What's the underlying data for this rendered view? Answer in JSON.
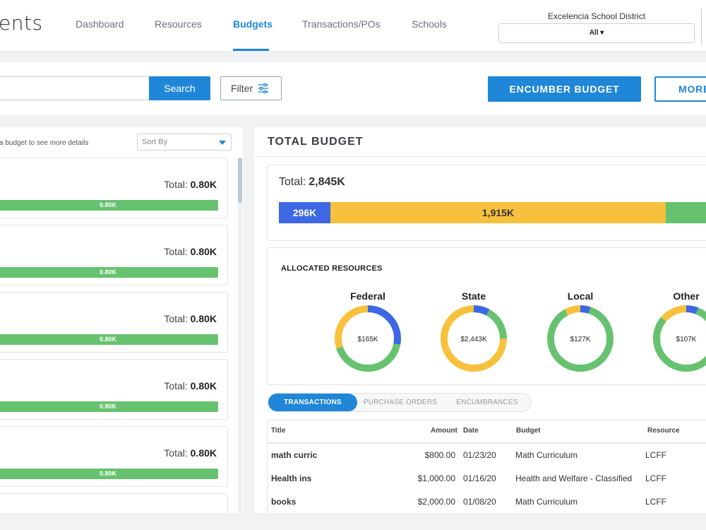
{
  "app": {
    "logo_text": "ents"
  },
  "nav": {
    "items": [
      {
        "label": "Dashboard"
      },
      {
        "label": "Resources"
      },
      {
        "label": "Budgets"
      },
      {
        "label": "Transactions/POs"
      },
      {
        "label": "Schools"
      }
    ],
    "active_item": "Budgets",
    "district_label": "Excelencia School District",
    "district_value": "All ▾"
  },
  "toolbar": {
    "search_value": "",
    "search_label": "Search",
    "filter_label": "Filter",
    "encumber_label": "ENCUMBER BUDGET",
    "more_label": "MORE"
  },
  "left": {
    "hint": "a budget to see more details",
    "sort_placeholder": "Sort By",
    "cards": [
      {
        "total_label": "Total:",
        "total_value": "0.80K",
        "bar_label": "0.80K"
      },
      {
        "total_label": "Total:",
        "total_value": "0.80K",
        "bar_label": "0.80K"
      },
      {
        "total_label": "Total:",
        "total_value": "0.80K",
        "bar_label": "0.80K"
      },
      {
        "total_label": "Total:",
        "total_value": "0.80K",
        "bar_label": "0.80K"
      },
      {
        "total_label": "Total:",
        "total_value": "0.80K",
        "bar_label": "0.80K"
      }
    ]
  },
  "right": {
    "title": "TOTAL BUDGET",
    "total_label": "Total:",
    "total_value": "2,845K",
    "segments": [
      {
        "label": "296K",
        "color": "#3d67e3"
      },
      {
        "label": "1,915K",
        "color": "#f7c13d"
      },
      {
        "label": "",
        "color": "#66c26f"
      }
    ],
    "allocated_title": "ALLOCATED RESOURCES",
    "donuts": [
      {
        "name": "Federal",
        "value": "$165K",
        "fractions": {
          "blue": 0.28,
          "green": 0.42,
          "yellow": 0.3
        }
      },
      {
        "name": "State",
        "value": "$2,443K",
        "fractions": {
          "blue": 0.08,
          "green": 0.17,
          "yellow": 0.75
        }
      },
      {
        "name": "Local",
        "value": "$127K",
        "fractions": {
          "blue": 0.05,
          "green": 0.87,
          "yellow": 0.08
        }
      },
      {
        "name": "Other",
        "value": "$107K",
        "fractions": {
          "blue": 0.06,
          "green": 0.8,
          "yellow": 0.14
        }
      }
    ],
    "tabs": [
      {
        "label": "TRANSACTIONS"
      },
      {
        "label": "PURCHASE ORDERS"
      },
      {
        "label": "ENCUMBRANCES"
      }
    ],
    "active_tab": "TRANSACTIONS",
    "table": {
      "headers": {
        "title": "Title",
        "amount": "Amount",
        "date": "Date",
        "budget": "Budget",
        "resource": "Resource"
      },
      "rows": [
        {
          "title": "math curric",
          "amount": "$800.00",
          "date": "01/23/20",
          "budget": "Math Curriculum",
          "resource": "LCFF"
        },
        {
          "title": "Health ins",
          "amount": "$1,000.00",
          "date": "01/16/20",
          "budget": "Health and Welfare - Classified",
          "resource": "LCFF"
        },
        {
          "title": "books",
          "amount": "$2,000.00",
          "date": "01/08/20",
          "budget": "Math Curriculum",
          "resource": "LCFF"
        }
      ]
    }
  },
  "colors": {
    "accent": "#1f86d8",
    "federal": "#3d67e3",
    "state": "#f7c13d",
    "local": "#66c26f"
  }
}
